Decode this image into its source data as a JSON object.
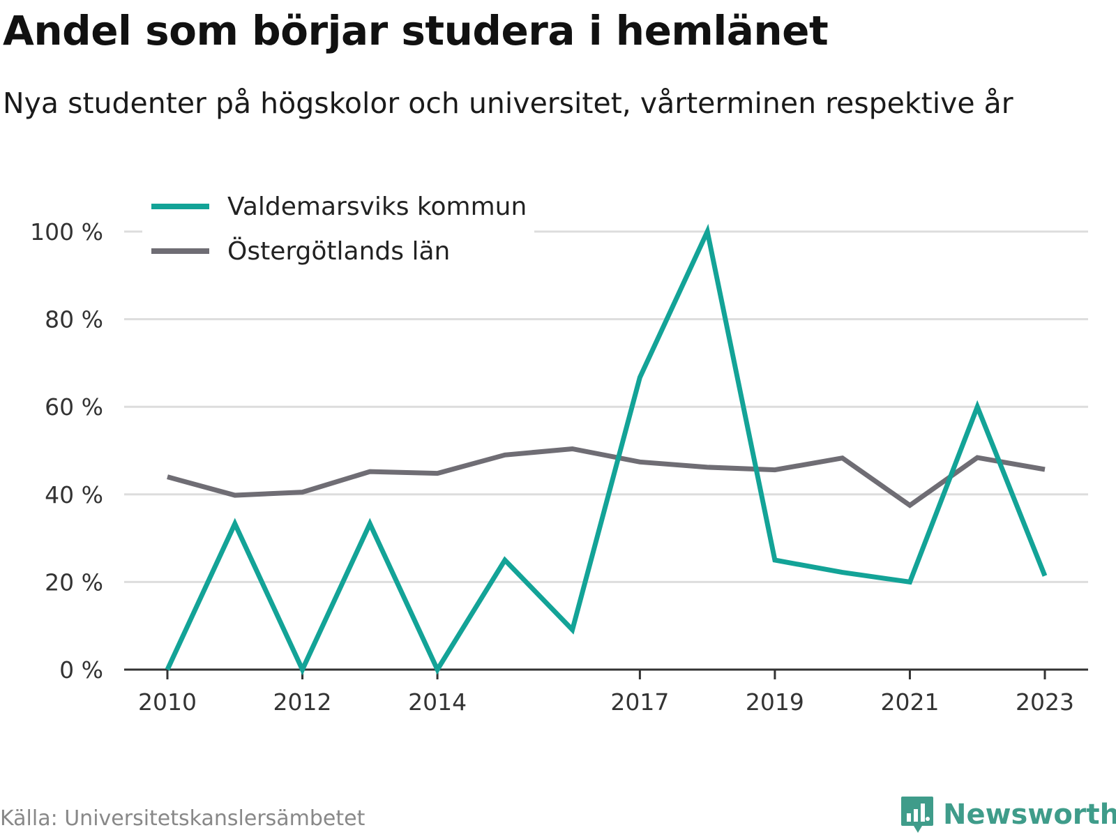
{
  "title": "Andel som börjar studera i hemlänet",
  "subtitle": "Nya studenter på högskolor och universitet, vårterminen respektive år",
  "source": "Källa: Universitetskanslersämbetet",
  "brand": {
    "name": "Newsworthy",
    "icon": "bar-chart-speech-bubble-icon",
    "color": "#3f9c8a"
  },
  "chart_data": {
    "type": "line",
    "x": [
      2010,
      2011,
      2012,
      2013,
      2014,
      2015,
      2016,
      2017,
      2018,
      2019,
      2020,
      2021,
      2022,
      2023
    ],
    "x_tick_labels": [
      "2010",
      "2012",
      "2014",
      "2017",
      "2019",
      "2021",
      "2023"
    ],
    "y_ticks": [
      0,
      20,
      40,
      60,
      80,
      100
    ],
    "y_tick_labels": [
      "0 %",
      "20 %",
      "40 %",
      "60 %",
      "80 %",
      "100 %"
    ],
    "ylim": [
      0,
      100
    ],
    "grid": true,
    "legend_position": "top-left",
    "series": [
      {
        "name": "Valdemarsviks kommun",
        "color": "#13a397",
        "values": [
          0,
          33.3,
          0,
          33.3,
          0,
          25,
          9.1,
          66.7,
          100,
          25,
          22.2,
          20,
          60,
          21.4
        ]
      },
      {
        "name": "Östergötlands län",
        "color": "#6f6d74",
        "values": [
          44,
          39.8,
          40.5,
          45.2,
          44.8,
          49,
          50.4,
          47.4,
          46.2,
          45.6,
          48.3,
          37.5,
          48.4,
          45.7
        ]
      }
    ]
  }
}
